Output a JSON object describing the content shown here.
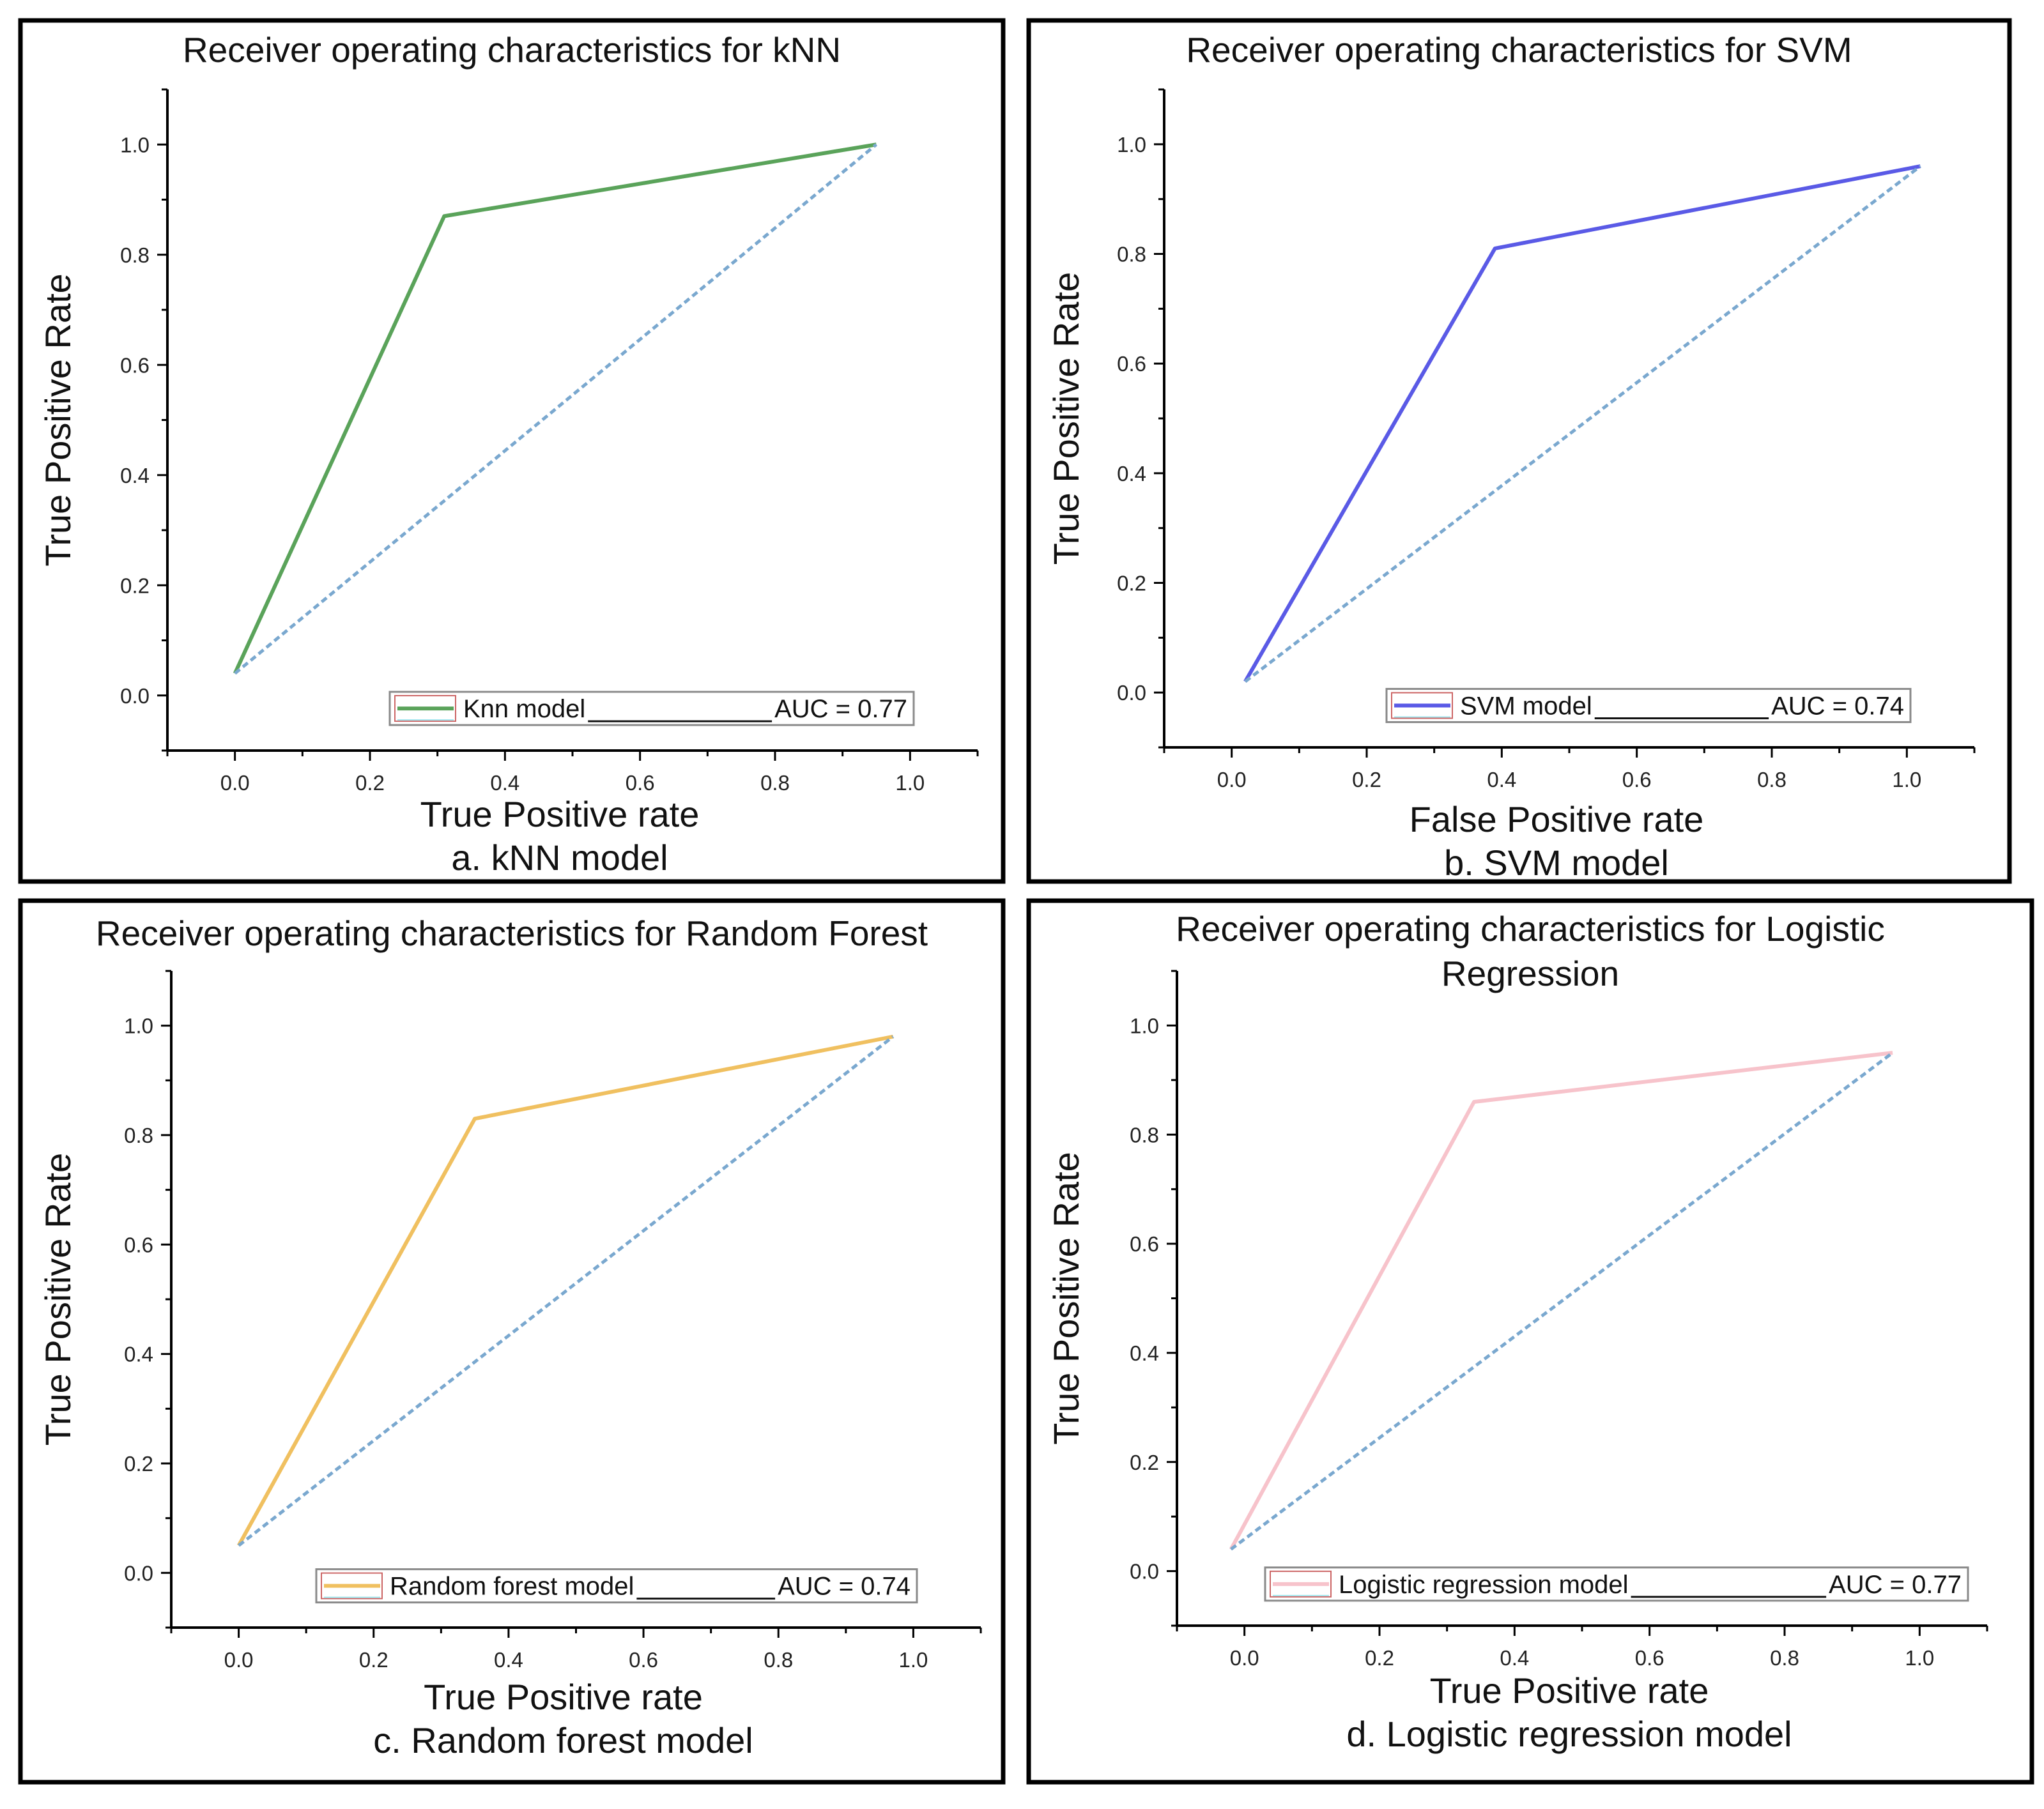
{
  "chart_data": [
    {
      "type": "line",
      "title": "Receiver operating characteristics for kNN",
      "xlabel": "True Positive rate",
      "ylabel": "True Positive Rate",
      "caption": "a. kNN model",
      "xlim": [
        -0.1,
        1.1
      ],
      "ylim": [
        -0.1,
        1.1
      ],
      "xticks": [
        "0.0",
        "0.2",
        "0.4",
        "0.6",
        "0.8",
        "1.0"
      ],
      "yticks": [
        "0.0",
        "0.2",
        "0.4",
        "0.6",
        "0.8",
        "1.0"
      ],
      "legend": {
        "position": "bottom-right",
        "label": "Knn model",
        "auc": "AUC = 0.77"
      },
      "colors": {
        "curve": "#5aa35a",
        "diagonal": "#7aa8cf"
      },
      "series": [
        {
          "name": "Knn model",
          "style": "solid",
          "x": [
            0.0,
            0.31,
            0.95
          ],
          "y": [
            0.04,
            0.87,
            1.0
          ]
        },
        {
          "style": "dashed",
          "x": [
            0.0,
            0.95
          ],
          "y": [
            0.04,
            1.0
          ]
        }
      ]
    },
    {
      "type": "line",
      "title": "Receiver operating characteristics for SVM",
      "xlabel": "False Positive rate",
      "ylabel": "True Positive Rate",
      "caption": "b. SVM model",
      "xlim": [
        -0.1,
        1.1
      ],
      "ylim": [
        -0.1,
        1.1
      ],
      "xticks": [
        "0.0",
        "0.2",
        "0.4",
        "0.6",
        "0.8",
        "1.0"
      ],
      "yticks": [
        "0.0",
        "0.2",
        "0.4",
        "0.6",
        "0.8",
        "1.0"
      ],
      "legend": {
        "position": "bottom-right",
        "label": "SVM model",
        "auc": "AUC = 0.74"
      },
      "colors": {
        "curve": "#5a5ae6",
        "diagonal": "#7aa8cf"
      },
      "series": [
        {
          "name": "SVM model",
          "style": "solid",
          "x": [
            0.02,
            0.39,
            1.02
          ],
          "y": [
            0.02,
            0.81,
            0.96
          ]
        },
        {
          "style": "dashed",
          "x": [
            0.02,
            1.02
          ],
          "y": [
            0.02,
            0.96
          ]
        }
      ]
    },
    {
      "type": "line",
      "title": "Receiver operating characteristics for Random  Forest",
      "xlabel": "True Positive rate",
      "ylabel": "True Positive Rate",
      "caption": "c. Random forest model",
      "xlim": [
        -0.1,
        1.1
      ],
      "ylim": [
        -0.1,
        1.1
      ],
      "xticks": [
        "0.0",
        "0.2",
        "0.4",
        "0.6",
        "0.8",
        "1.0"
      ],
      "yticks": [
        "0.0",
        "0.2",
        "0.4",
        "0.6",
        "0.8",
        "1.0"
      ],
      "legend": {
        "position": "bottom-right",
        "label": "Random  forest model",
        "auc": "AUC = 0.74"
      },
      "colors": {
        "curve": "#f0c060",
        "diagonal": "#7aa8cf"
      },
      "series": [
        {
          "name": "Random  forest model",
          "style": "solid",
          "x": [
            0.0,
            0.35,
            0.97
          ],
          "y": [
            0.05,
            0.83,
            0.98
          ]
        },
        {
          "style": "dashed",
          "x": [
            0.0,
            0.97
          ],
          "y": [
            0.05,
            0.98
          ]
        }
      ]
    },
    {
      "type": "line",
      "title": "Receiver operating characteristics for Logistic Regression",
      "title_lines": [
        "Receiver operating characteristics for Logistic",
        "Regression"
      ],
      "xlabel": "True Positive rate",
      "ylabel": "True Positive Rate",
      "caption": "d. Logistic regression model",
      "xlim": [
        -0.1,
        1.1
      ],
      "ylim": [
        -0.1,
        1.1
      ],
      "xticks": [
        "0.0",
        "0.2",
        "0.4",
        "0.6",
        "0.8",
        "1.0"
      ],
      "yticks": [
        "0.0",
        "0.2",
        "0.4",
        "0.6",
        "0.8",
        "1.0"
      ],
      "legend": {
        "position": "bottom-right",
        "label": "Logistic regression model",
        "auc": "AUC = 0.77"
      },
      "colors": {
        "curve": "#f7c3cb",
        "diagonal": "#7aa8cf"
      },
      "series": [
        {
          "name": "Logistic regression model",
          "style": "solid",
          "x": [
            -0.02,
            0.34,
            0.96
          ],
          "y": [
            0.04,
            0.86,
            0.95
          ]
        },
        {
          "style": "dashed",
          "x": [
            -0.02,
            0.96
          ],
          "y": [
            0.04,
            0.95
          ]
        }
      ]
    }
  ]
}
